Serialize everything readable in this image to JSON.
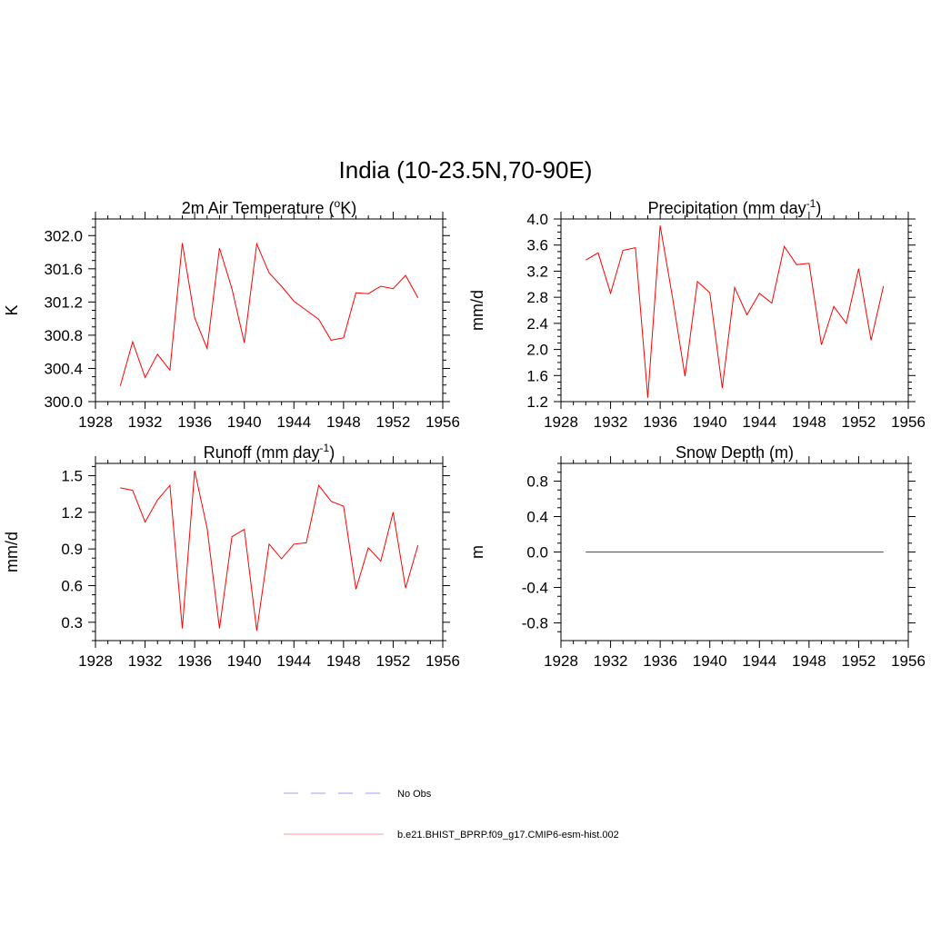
{
  "figure": {
    "title": "India (10-23.5N,70-90E)"
  },
  "legend": {
    "items": [
      {
        "label": "No Obs",
        "color": "#9999ff",
        "style": "dashed"
      },
      {
        "label": "b.e21.BHIST_BPRP.f09_g17.CMIP6-esm-hist.002",
        "color": "#ff0000",
        "style": "solid"
      }
    ]
  },
  "chart_data": [
    {
      "type": "line",
      "title": "2m Air Temperature (",
      "title_sup": "o",
      "title_after": "K)",
      "ylabel": "K",
      "xlim": [
        1928,
        1956
      ],
      "ylim": [
        300.0,
        302.2
      ],
      "xticks": [
        1928,
        1932,
        1936,
        1940,
        1944,
        1948,
        1952,
        1956
      ],
      "yticks": [
        300.0,
        300.4,
        300.8,
        301.2,
        301.6,
        302.0
      ],
      "ytick_labels": [
        "300.0",
        "300.4",
        "300.8",
        "301.2",
        "301.6",
        "302.0"
      ],
      "x": [
        1930,
        1931,
        1932,
        1933,
        1934,
        1935,
        1936,
        1937,
        1938,
        1939,
        1940,
        1941,
        1942,
        1943,
        1944,
        1945,
        1946,
        1947,
        1948,
        1949,
        1950,
        1951,
        1952,
        1953,
        1954
      ],
      "series": [
        {
          "name": "b.e21.BHIST_BPRP.f09_g17.CMIP6-esm-hist.002",
          "values": [
            300.19,
            300.72,
            300.29,
            300.57,
            300.38,
            301.91,
            301.01,
            300.64,
            301.85,
            301.36,
            300.71,
            301.9,
            301.55,
            301.39,
            301.21,
            301.1,
            300.99,
            300.74,
            300.77,
            301.31,
            301.3,
            301.39,
            301.36,
            301.52,
            301.25
          ]
        }
      ]
    },
    {
      "type": "line",
      "title": "Precipitation (mm day",
      "title_sup": "-1",
      "title_after": ")",
      "ylabel": "mm/d",
      "xlim": [
        1928,
        1956
      ],
      "ylim": [
        1.2,
        4.0
      ],
      "xticks": [
        1928,
        1932,
        1936,
        1940,
        1944,
        1948,
        1952,
        1956
      ],
      "yticks": [
        1.2,
        1.6,
        2.0,
        2.4,
        2.8,
        3.2,
        3.6,
        4.0
      ],
      "ytick_labels": [
        "1.2",
        "1.6",
        "2.0",
        "2.4",
        "2.8",
        "3.2",
        "3.6",
        "4.0"
      ],
      "x": [
        1930,
        1931,
        1932,
        1933,
        1934,
        1935,
        1936,
        1937,
        1938,
        1939,
        1940,
        1941,
        1942,
        1943,
        1944,
        1945,
        1946,
        1947,
        1948,
        1949,
        1950,
        1951,
        1952,
        1953,
        1954
      ],
      "series": [
        {
          "name": "b.e21.BHIST_BPRP.f09_g17.CMIP6-esm-hist.002",
          "values": [
            3.37,
            3.48,
            2.86,
            3.52,
            3.56,
            1.26,
            3.9,
            2.79,
            1.59,
            3.04,
            2.87,
            1.41,
            2.95,
            2.53,
            2.86,
            2.71,
            3.58,
            3.3,
            3.32,
            2.07,
            2.66,
            2.4,
            3.24,
            2.14,
            2.97
          ]
        }
      ]
    },
    {
      "type": "line",
      "title": "Runoff (mm day",
      "title_sup": "-1",
      "title_after": ")",
      "ylabel": "mm/d",
      "xlim": [
        1928,
        1956
      ],
      "ylim": [
        0.15,
        1.6
      ],
      "xticks": [
        1928,
        1932,
        1936,
        1940,
        1944,
        1948,
        1952,
        1956
      ],
      "yticks": [
        0.3,
        0.6,
        0.9,
        1.2,
        1.5
      ],
      "ytick_labels": [
        "0.3",
        "0.6",
        "0.9",
        "1.2",
        "1.5"
      ],
      "x": [
        1930,
        1931,
        1932,
        1933,
        1934,
        1935,
        1936,
        1937,
        1938,
        1939,
        1940,
        1941,
        1942,
        1943,
        1944,
        1945,
        1946,
        1947,
        1948,
        1949,
        1950,
        1951,
        1952,
        1953,
        1954
      ],
      "series": [
        {
          "name": "b.e21.BHIST_BPRP.f09_g17.CMIP6-esm-hist.002",
          "values": [
            1.4,
            1.38,
            1.12,
            1.3,
            1.42,
            0.25,
            1.54,
            1.07,
            0.25,
            1.0,
            1.06,
            0.23,
            0.94,
            0.82,
            0.94,
            0.95,
            1.42,
            1.29,
            1.25,
            0.57,
            0.91,
            0.8,
            1.2,
            0.58,
            0.93
          ]
        }
      ]
    },
    {
      "type": "line",
      "title": "Snow Depth (m)",
      "title_sup": "",
      "title_after": "",
      "ylabel": "m",
      "xlim": [
        1928,
        1956
      ],
      "ylim": [
        -1.0,
        1.0
      ],
      "xticks": [
        1928,
        1932,
        1936,
        1940,
        1944,
        1948,
        1952,
        1956
      ],
      "yticks": [
        -0.8,
        -0.4,
        0.0,
        0.4,
        0.8
      ],
      "ytick_labels": [
        "-0.8",
        "-0.4",
        "0.0",
        "0.4",
        "0.8"
      ],
      "x": [
        1930,
        1931,
        1932,
        1933,
        1934,
        1935,
        1936,
        1937,
        1938,
        1939,
        1940,
        1941,
        1942,
        1943,
        1944,
        1945,
        1946,
        1947,
        1948,
        1949,
        1950,
        1951,
        1952,
        1953,
        1954
      ],
      "series": [
        {
          "name": "b.e21.BHIST_BPRP.f09_g17.CMIP6-esm-hist.002",
          "values": [
            0,
            0,
            0,
            0,
            0,
            0,
            0,
            0,
            0,
            0,
            0,
            0,
            0,
            0,
            0,
            0,
            0,
            0,
            0,
            0,
            0,
            0,
            0,
            0,
            0
          ]
        }
      ]
    }
  ]
}
